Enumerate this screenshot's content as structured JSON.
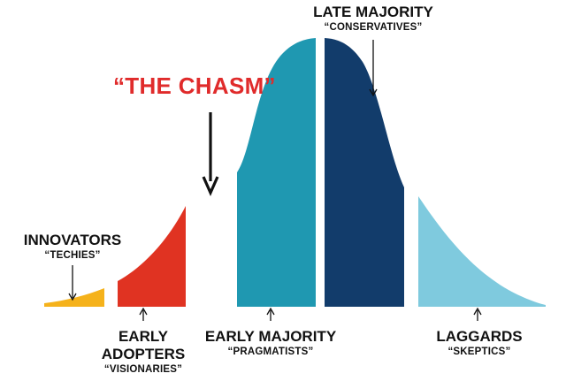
{
  "chasm": {
    "title": "“THE CHASM”",
    "title_color": "#e02b2b"
  },
  "segments": [
    {
      "key": "innovators",
      "title": "INNOVATORS",
      "subtitle": "“TECHIES”",
      "color": "#f5b21b"
    },
    {
      "key": "early_adopters",
      "title_line1": "EARLY",
      "title_line2": "ADOPTERS",
      "subtitle": "“VISIONARIES”",
      "color": "#e03322"
    },
    {
      "key": "early_majority",
      "title": "EARLY MAJORITY",
      "subtitle": "“PRAGMATISTS”",
      "color": "#1f98b1"
    },
    {
      "key": "late_majority",
      "title": "LATE MAJORITY",
      "subtitle": "“CONSERVATIVES”",
      "color": "#123c6b"
    },
    {
      "key": "laggards",
      "title": "LAGGARDS",
      "subtitle": "“SKEPTICS”",
      "color": "#7fcade"
    }
  ],
  "arrow_color": "#111111"
}
